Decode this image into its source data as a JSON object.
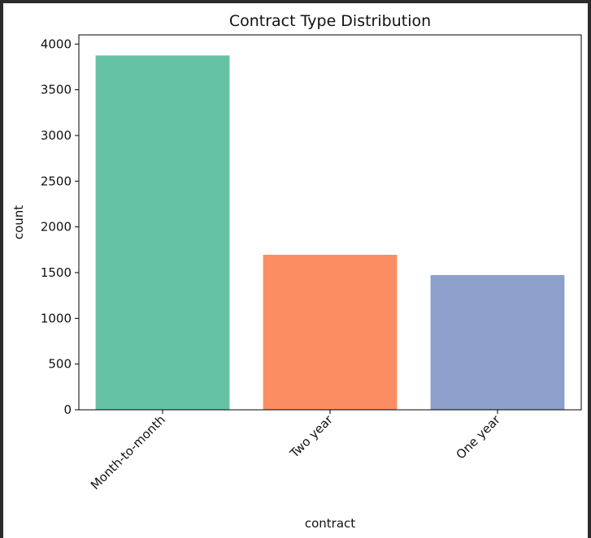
{
  "chart_data": {
    "type": "bar",
    "title": "Contract Type Distribution",
    "xlabel": "contract",
    "ylabel": "count",
    "categories": [
      "Month-to-month",
      "Two year",
      "One year"
    ],
    "values": [
      3875,
      1695,
      1473
    ],
    "colors": [
      "#66c2a5",
      "#fc8d62",
      "#8da0cb"
    ],
    "ylim": [
      0,
      4100
    ],
    "yticks": [
      0,
      500,
      1000,
      1500,
      2000,
      2500,
      3000,
      3500,
      4000
    ],
    "grid": false,
    "legend": "none"
  }
}
